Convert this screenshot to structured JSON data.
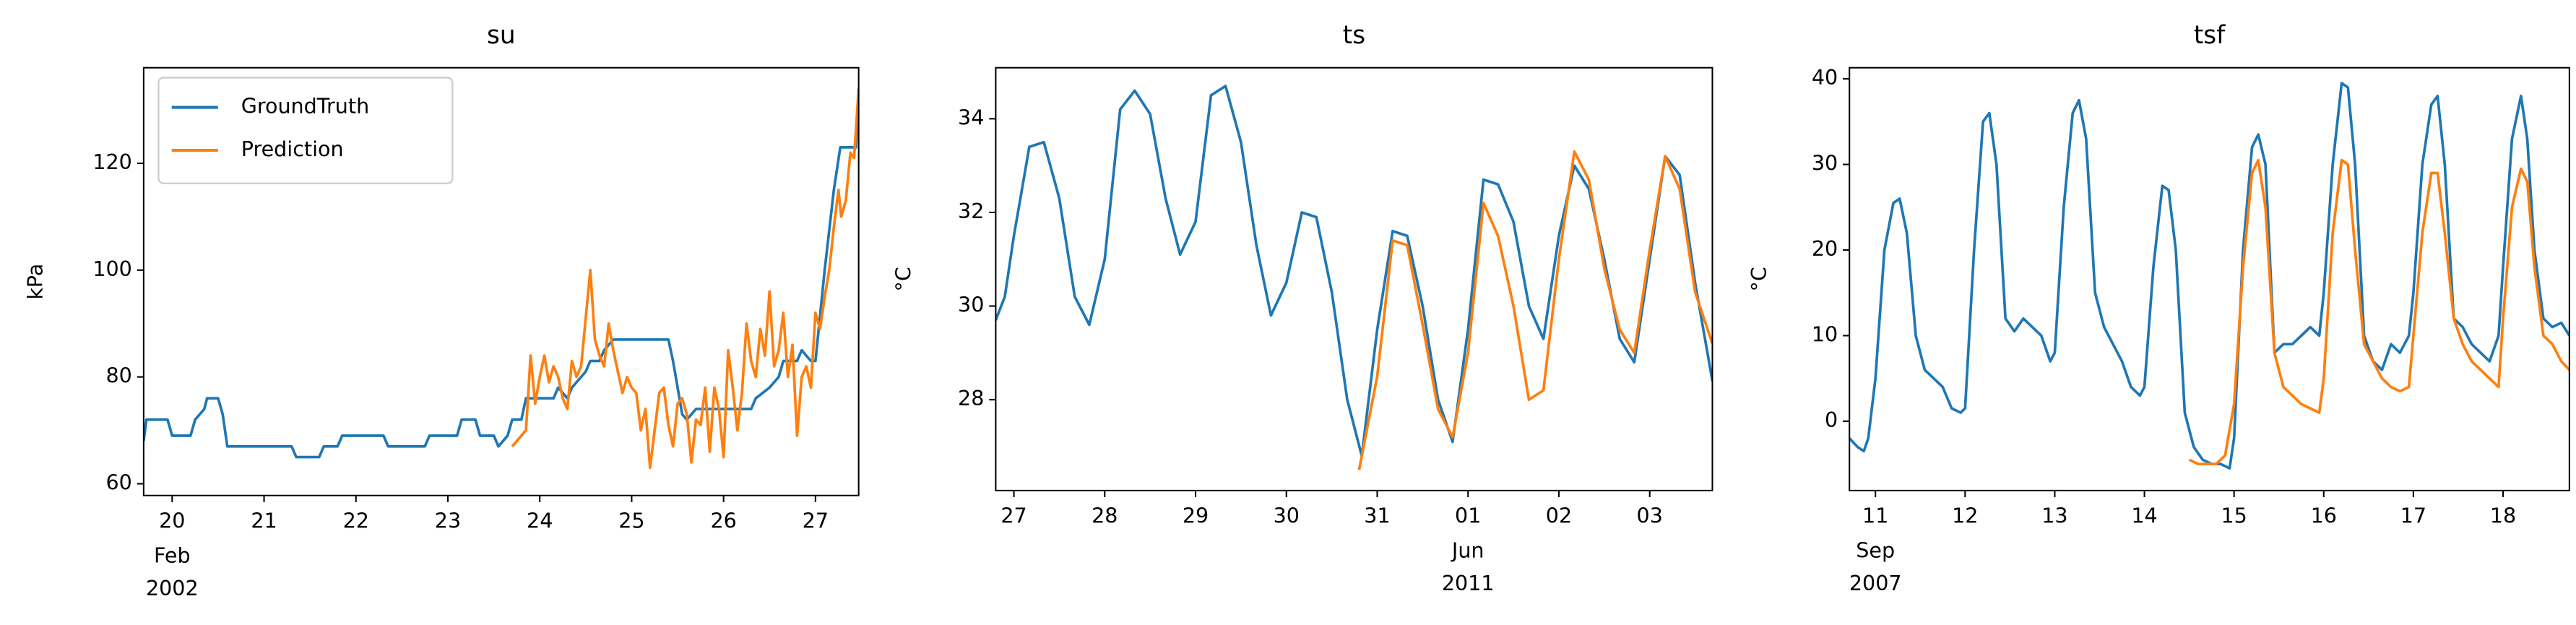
{
  "chart_data": [
    {
      "type": "line",
      "title": "su",
      "ylabel": "kPa",
      "xlim": [
        19.69,
        27.47
      ],
      "xticks": [
        20,
        21,
        22,
        23,
        24,
        25,
        26,
        27
      ],
      "period_label": {
        "value": 20,
        "label": [
          "Feb",
          "2002"
        ]
      },
      "ylim": [
        57.8,
        137.9
      ],
      "yticks": [
        60,
        80,
        100,
        120
      ],
      "legend": "upper left",
      "series": [
        {
          "name": "GroundTruth",
          "color": "#1f77b4",
          "x": [
            19.69,
            19.72,
            19.95,
            20.0,
            20.2,
            20.25,
            20.35,
            20.38,
            20.5,
            20.55,
            20.6,
            21.3,
            21.35,
            21.6,
            21.65,
            21.8,
            21.85,
            22.3,
            22.35,
            22.75,
            22.8,
            23.1,
            23.15,
            23.3,
            23.35,
            23.5,
            23.55,
            23.65,
            23.7,
            23.8,
            23.85,
            24.15,
            24.2,
            24.3,
            24.35,
            24.5,
            24.55,
            24.65,
            24.7,
            24.8,
            25.4,
            25.45,
            25.5,
            25.55,
            25.6,
            25.7,
            26.3,
            26.35,
            26.5,
            26.6,
            26.65,
            26.8,
            26.85,
            26.95,
            27.0,
            27.1,
            27.2,
            27.27,
            27.44,
            27.47
          ],
          "values": [
            68,
            72,
            72,
            69,
            69,
            72,
            74,
            76,
            76,
            73,
            67,
            67,
            65,
            65,
            67,
            67,
            69,
            69,
            67,
            67,
            69,
            69,
            72,
            72,
            69,
            69,
            67,
            69,
            72,
            72,
            76,
            76,
            78,
            76,
            78,
            81,
            83,
            83,
            85,
            87,
            87,
            83,
            78,
            73,
            72,
            74,
            74,
            76,
            78,
            80,
            83,
            83,
            85,
            83,
            83,
            100,
            115,
            123,
            123,
            134
          ]
        },
        {
          "name": "Prediction",
          "color": "#ff7f0e",
          "x": [
            23.7,
            23.8,
            23.85,
            23.9,
            23.95,
            24.0,
            24.05,
            24.1,
            24.15,
            24.2,
            24.25,
            24.3,
            24.35,
            24.4,
            24.45,
            24.5,
            24.55,
            24.6,
            24.65,
            24.7,
            24.75,
            24.8,
            24.9,
            24.95,
            25.0,
            25.05,
            25.1,
            25.15,
            25.2,
            25.25,
            25.3,
            25.35,
            25.4,
            25.45,
            25.5,
            25.55,
            25.6,
            25.65,
            25.7,
            25.75,
            25.8,
            25.85,
            25.9,
            25.95,
            26.0,
            26.05,
            26.1,
            26.15,
            26.2,
            26.25,
            26.3,
            26.35,
            26.4,
            26.45,
            26.5,
            26.55,
            26.6,
            26.65,
            26.7,
            26.75,
            26.8,
            26.85,
            26.9,
            26.95,
            27.0,
            27.05,
            27.1,
            27.15,
            27.2,
            27.25,
            27.28,
            27.33,
            27.38,
            27.42,
            27.47
          ],
          "values": [
            67,
            69,
            70,
            84,
            75,
            80,
            84,
            79,
            82,
            80,
            76,
            74,
            83,
            80,
            82,
            91,
            100,
            87,
            84,
            82,
            90,
            85,
            77,
            80,
            78,
            77,
            70,
            74,
            63,
            70,
            77,
            78,
            71,
            67,
            75,
            76,
            73,
            64,
            72,
            71,
            78,
            66,
            78,
            74,
            65,
            85,
            78,
            70,
            77,
            90,
            83,
            80,
            89,
            84,
            96,
            82,
            85,
            92,
            80,
            86,
            69,
            80,
            82,
            78,
            92,
            89,
            95,
            100,
            108,
            115,
            110,
            113,
            122,
            121,
            134
          ]
        }
      ]
    },
    {
      "type": "line",
      "title": "ts",
      "ylabel": "°C",
      "xlim": [
        26.8,
        34.69
      ],
      "xticks": [
        27,
        28,
        29,
        30,
        31,
        {
          "value": 32,
          "label": "01"
        },
        {
          "value": 33,
          "label": "02"
        },
        {
          "value": 34,
          "label": "03"
        }
      ],
      "period_label": {
        "value": 32,
        "label": [
          "Jun",
          "2011"
        ]
      },
      "ylim": [
        26.06,
        35.09
      ],
      "yticks": [
        28,
        30,
        32,
        34
      ],
      "series": [
        {
          "color": "#1f77b4",
          "x": [
            26.8,
            26.9,
            27.0,
            27.17,
            27.33,
            27.5,
            27.67,
            27.83,
            28.0,
            28.17,
            28.33,
            28.5,
            28.67,
            28.83,
            29.0,
            29.17,
            29.33,
            29.5,
            29.67,
            29.83,
            30.0,
            30.17,
            30.33,
            30.5,
            30.67,
            30.83,
            31.0,
            31.17,
            31.33,
            31.5,
            31.67,
            31.83,
            32.0,
            32.17,
            32.33,
            32.5,
            32.67,
            32.83,
            33.0,
            33.17,
            33.33,
            33.5,
            33.67,
            33.83,
            34.0,
            34.17,
            34.33,
            34.5,
            34.69
          ],
          "values": [
            29.7,
            30.2,
            31.5,
            33.4,
            33.5,
            32.3,
            30.2,
            29.6,
            31.0,
            34.2,
            34.6,
            34.1,
            32.3,
            31.1,
            31.8,
            34.5,
            34.7,
            33.5,
            31.3,
            29.8,
            30.5,
            32.0,
            31.9,
            30.3,
            28.0,
            26.8,
            29.5,
            31.6,
            31.5,
            30.0,
            28.0,
            27.1,
            29.5,
            32.7,
            32.6,
            31.8,
            30.0,
            29.3,
            31.5,
            33.0,
            32.5,
            31.0,
            29.3,
            28.8,
            31.0,
            33.2,
            32.8,
            30.5,
            28.4
          ]
        },
        {
          "color": "#ff7f0e",
          "x": [
            30.8,
            31.0,
            31.17,
            31.33,
            31.5,
            31.67,
            31.83,
            32.0,
            32.17,
            32.33,
            32.5,
            32.67,
            32.83,
            33.0,
            33.17,
            33.33,
            33.5,
            33.67,
            33.83,
            34.0,
            34.17,
            34.33,
            34.5,
            34.69
          ],
          "values": [
            26.5,
            28.5,
            31.4,
            31.3,
            29.6,
            27.8,
            27.2,
            29.0,
            32.2,
            31.5,
            30.0,
            28.0,
            28.2,
            31.0,
            33.3,
            32.7,
            30.8,
            29.5,
            29.0,
            31.2,
            33.2,
            32.5,
            30.3,
            29.2
          ]
        }
      ]
    },
    {
      "type": "line",
      "title": "tsf",
      "ylabel": "°C",
      "xlim": [
        10.71,
        18.74
      ],
      "xticks": [
        11,
        12,
        13,
        14,
        15,
        16,
        17,
        18
      ],
      "period_label": {
        "value": 11,
        "label": [
          "Sep",
          "2007"
        ]
      },
      "ylim": [
        -8.1,
        41.3
      ],
      "yticks": [
        0,
        10,
        20,
        30,
        40
      ],
      "series": [
        {
          "color": "#1f77b4",
          "x": [
            10.71,
            10.8,
            10.87,
            10.92,
            11.0,
            11.1,
            11.2,
            11.27,
            11.35,
            11.45,
            11.55,
            11.65,
            11.75,
            11.85,
            11.95,
            12.0,
            12.1,
            12.2,
            12.27,
            12.35,
            12.45,
            12.55,
            12.65,
            12.75,
            12.85,
            12.95,
            13.0,
            13.1,
            13.2,
            13.27,
            13.35,
            13.45,
            13.55,
            13.65,
            13.75,
            13.85,
            13.95,
            14.0,
            14.1,
            14.2,
            14.27,
            14.35,
            14.45,
            14.55,
            14.65,
            14.75,
            14.85,
            14.95,
            15.0,
            15.1,
            15.2,
            15.27,
            15.35,
            15.45,
            15.55,
            15.65,
            15.75,
            15.85,
            15.95,
            16.0,
            16.1,
            16.2,
            16.27,
            16.35,
            16.45,
            16.55,
            16.65,
            16.75,
            16.85,
            16.95,
            17.0,
            17.1,
            17.2,
            17.27,
            17.35,
            17.45,
            17.55,
            17.65,
            17.75,
            17.85,
            17.95,
            18.0,
            18.1,
            18.2,
            18.27,
            18.35,
            18.45,
            18.55,
            18.65,
            18.74
          ],
          "values": [
            -2,
            -3,
            -3.5,
            -2,
            5,
            20,
            25.5,
            26,
            22,
            10,
            6,
            5,
            4,
            1.5,
            1,
            1.5,
            20,
            35,
            36,
            30,
            12,
            10.5,
            12,
            11,
            10,
            7,
            8,
            25,
            36,
            37.5,
            33,
            15,
            11,
            9,
            7,
            4,
            3,
            4,
            18,
            27.5,
            27,
            20,
            1,
            -3,
            -4.5,
            -5,
            -5,
            -5.5,
            -2,
            20,
            32,
            33.5,
            30,
            8,
            9,
            9,
            10,
            11,
            10,
            15,
            30,
            39.5,
            39,
            30,
            10,
            7,
            6,
            9,
            8,
            10,
            15,
            30,
            37,
            38,
            30,
            12,
            11,
            9,
            8,
            7,
            10,
            18,
            33,
            38,
            33,
            20,
            12,
            11,
            11.5,
            10
          ]
        },
        {
          "color": "#ff7f0e",
          "x": [
            14.5,
            14.6,
            14.7,
            14.8,
            14.9,
            15.0,
            15.1,
            15.2,
            15.27,
            15.35,
            15.45,
            15.55,
            15.65,
            15.75,
            15.85,
            15.95,
            16.0,
            16.1,
            16.2,
            16.27,
            16.35,
            16.45,
            16.55,
            16.65,
            16.75,
            16.85,
            16.95,
            17.0,
            17.1,
            17.2,
            17.27,
            17.35,
            17.45,
            17.55,
            17.65,
            17.75,
            17.85,
            17.95,
            18.0,
            18.1,
            18.2,
            18.27,
            18.35,
            18.45,
            18.55,
            18.65,
            18.74
          ],
          "values": [
            -4.5,
            -5,
            -5,
            -5,
            -4,
            2,
            18,
            29,
            30.5,
            25,
            8,
            4,
            3,
            2,
            1.5,
            1,
            5,
            22,
            30.5,
            30,
            20,
            9,
            7,
            5,
            4,
            3.5,
            4,
            10,
            22,
            29,
            29,
            22,
            12,
            9,
            7,
            6,
            5,
            4,
            12,
            25,
            29.5,
            28,
            18,
            10,
            9,
            7,
            6
          ]
        }
      ]
    }
  ]
}
